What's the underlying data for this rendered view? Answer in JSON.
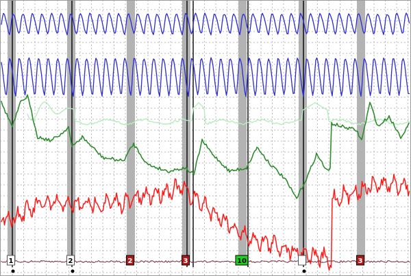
{
  "recording": {
    "markers": [
      {
        "label": "1",
        "style": "plain",
        "dot": true
      },
      {
        "label": "2",
        "style": "plain",
        "dot": true
      },
      {
        "label": "2",
        "style": "red",
        "dot": false
      },
      {
        "label": "3",
        "style": "red",
        "dot": false
      },
      {
        "label": "10",
        "style": "green",
        "dot": false
      },
      {
        "label": "",
        "style": "plain",
        "dot": true
      },
      {
        "label": "3",
        "style": "red",
        "dot": false
      }
    ],
    "channels": [
      {
        "id": "pneumo-upper",
        "color": "#2a2ad6"
      },
      {
        "id": "pneumo-lower",
        "color": "#2a2ad6"
      },
      {
        "id": "eda-light",
        "color": "#b6ecbe"
      },
      {
        "id": "eda",
        "color": "#2e8b2e"
      },
      {
        "id": "cardio",
        "color": "#ff1a1a"
      },
      {
        "id": "motion",
        "color": "#7a3040"
      }
    ],
    "marker_colors": {
      "plain": "#ffffff",
      "red": "#b01818",
      "green": "#1fd11f"
    }
  }
}
